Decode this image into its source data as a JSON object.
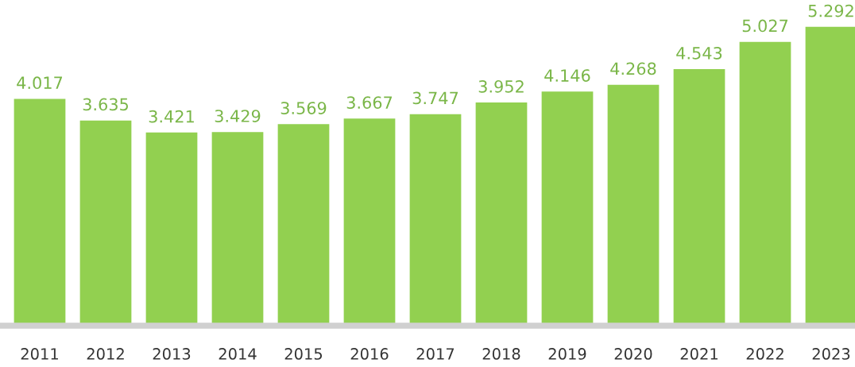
{
  "chart_data": {
    "type": "bar",
    "categories": [
      "2011",
      "2012",
      "2013",
      "2014",
      "2015",
      "2016",
      "2017",
      "2018",
      "2019",
      "2020",
      "2021",
      "2022",
      "2023"
    ],
    "values": [
      4.017,
      3.635,
      3.421,
      3.429,
      3.569,
      3.667,
      3.747,
      3.952,
      4.146,
      4.268,
      4.543,
      5.027,
      5.292
    ],
    "color": "#92d050",
    "data_labels": true,
    "grid": false,
    "legend": false,
    "tick_labels": "x"
  }
}
